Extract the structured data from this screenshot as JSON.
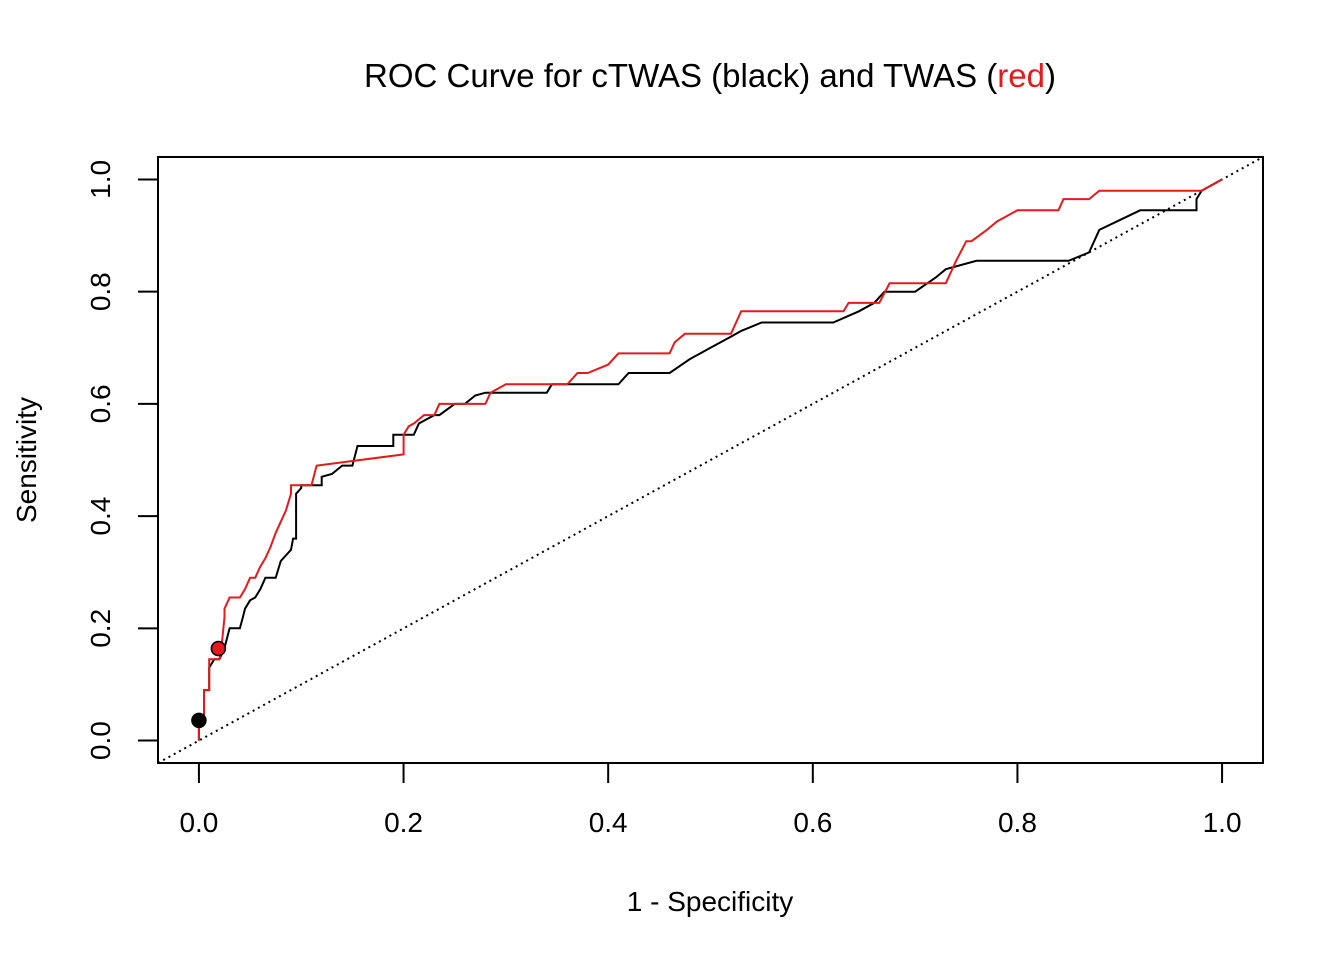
{
  "chart_data": {
    "type": "line",
    "title": {
      "prefix": "ROC Curve for cTWAS (black) and TWAS (",
      "highlight": "red",
      "suffix": ")"
    },
    "xlabel": "1 - Specificity",
    "ylabel": "Sensitivity",
    "xlim": [
      -0.04,
      1.04
    ],
    "ylim": [
      -0.04,
      1.04
    ],
    "x_ticks": [
      "0.0",
      "0.2",
      "0.4",
      "0.6",
      "0.8",
      "1.0"
    ],
    "y_ticks": [
      "0.0",
      "0.2",
      "0.4",
      "0.6",
      "0.8",
      "1.0"
    ],
    "grid": false,
    "colors": {
      "ctwas": "#000000",
      "twas": "#e41a1c",
      "highlight": "#e41a1c"
    },
    "reference_line": {
      "x": [
        0,
        1
      ],
      "y": [
        0,
        1
      ],
      "style": "dotted"
    },
    "series": [
      {
        "color": "#000000",
        "x": [
          0,
          0,
          0.005,
          0.005,
          0.01,
          0.01,
          0.015,
          0.02,
          0.025,
          0.03,
          0.04,
          0.043,
          0.045,
          0.05,
          0.055,
          0.06,
          0.065,
          0.07,
          0.075,
          0.08,
          0.09,
          0.092,
          0.095,
          0.095,
          0.1,
          0.1,
          0.12,
          0.12,
          0.13,
          0.14,
          0.14,
          0.15,
          0.155,
          0.19,
          0.19,
          0.2,
          0.21,
          0.215,
          0.23,
          0.235,
          0.25,
          0.26,
          0.27,
          0.28,
          0.34,
          0.345,
          0.41,
          0.42,
          0.46,
          0.48,
          0.49,
          0.5,
          0.52,
          0.53,
          0.55,
          0.6,
          0.61,
          0.62,
          0.645,
          0.66,
          0.67,
          0.7,
          0.72,
          0.73,
          0.76,
          0.85,
          0.87,
          0.88,
          0.92,
          0.975,
          0.975,
          0.98,
          1.0
        ],
        "y": [
          0,
          0.036,
          0.036,
          0.09,
          0.09,
          0.13,
          0.145,
          0.145,
          0.165,
          0.2,
          0.2,
          0.22,
          0.235,
          0.25,
          0.255,
          0.27,
          0.29,
          0.29,
          0.29,
          0.32,
          0.34,
          0.36,
          0.36,
          0.44,
          0.45,
          0.455,
          0.455,
          0.47,
          0.475,
          0.49,
          0.49,
          0.49,
          0.525,
          0.525,
          0.545,
          0.545,
          0.545,
          0.565,
          0.58,
          0.58,
          0.6,
          0.6,
          0.615,
          0.62,
          0.62,
          0.635,
          0.635,
          0.655,
          0.655,
          0.68,
          0.69,
          0.7,
          0.72,
          0.73,
          0.745,
          0.745,
          0.745,
          0.745,
          0.765,
          0.78,
          0.8,
          0.8,
          0.825,
          0.84,
          0.855,
          0.855,
          0.87,
          0.91,
          0.945,
          0.945,
          0.965,
          0.98,
          1.0
        ]
      },
      {
        "color": "#e41a1c",
        "x": [
          0,
          0,
          0.005,
          0.005,
          0.01,
          0.01,
          0.02,
          0.022,
          0.025,
          0.025,
          0.03,
          0.04,
          0.045,
          0.05,
          0.055,
          0.06,
          0.065,
          0.07,
          0.075,
          0.08,
          0.085,
          0.09,
          0.09,
          0.11,
          0.115,
          0.2,
          0.2,
          0.205,
          0.21,
          0.22,
          0.23,
          0.235,
          0.28,
          0.285,
          0.3,
          0.36,
          0.37,
          0.38,
          0.4,
          0.41,
          0.46,
          0.465,
          0.475,
          0.52,
          0.525,
          0.53,
          0.63,
          0.635,
          0.665,
          0.675,
          0.73,
          0.74,
          0.75,
          0.755,
          0.77,
          0.78,
          0.8,
          0.84,
          0.845,
          0.87,
          0.88,
          0.98,
          1.0
        ],
        "y": [
          0,
          0.036,
          0.036,
          0.09,
          0.09,
          0.145,
          0.145,
          0.165,
          0.22,
          0.235,
          0.255,
          0.255,
          0.27,
          0.29,
          0.29,
          0.31,
          0.325,
          0.345,
          0.37,
          0.39,
          0.41,
          0.44,
          0.455,
          0.455,
          0.49,
          0.51,
          0.545,
          0.56,
          0.565,
          0.58,
          0.58,
          0.6,
          0.6,
          0.62,
          0.635,
          0.635,
          0.655,
          0.655,
          0.67,
          0.69,
          0.69,
          0.71,
          0.725,
          0.725,
          0.745,
          0.765,
          0.765,
          0.78,
          0.78,
          0.815,
          0.815,
          0.855,
          0.89,
          0.89,
          0.91,
          0.925,
          0.945,
          0.945,
          0.965,
          0.965,
          0.98,
          0.98,
          1.0
        ]
      }
    ],
    "points": [
      {
        "x": 0.0,
        "y": 0.036,
        "color": "#000000"
      },
      {
        "x": 0.019,
        "y": 0.164,
        "color": "#e41a1c"
      }
    ]
  }
}
